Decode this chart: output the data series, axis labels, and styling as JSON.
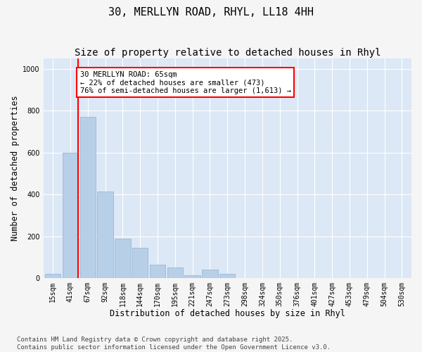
{
  "title_line1": "30, MERLLYN ROAD, RHYL, LL18 4HH",
  "title_line2": "Size of property relative to detached houses in Rhyl",
  "xlabel": "Distribution of detached houses by size in Rhyl",
  "ylabel": "Number of detached properties",
  "categories": [
    "15sqm",
    "41sqm",
    "67sqm",
    "92sqm",
    "118sqm",
    "144sqm",
    "170sqm",
    "195sqm",
    "221sqm",
    "247sqm",
    "273sqm",
    "298sqm",
    "324sqm",
    "350sqm",
    "376sqm",
    "401sqm",
    "427sqm",
    "453sqm",
    "479sqm",
    "504sqm",
    "530sqm"
  ],
  "values": [
    20,
    600,
    770,
    415,
    190,
    145,
    65,
    50,
    15,
    40,
    22,
    0,
    0,
    0,
    0,
    0,
    0,
    0,
    0,
    0,
    0
  ],
  "bar_color": "#b8cfe8",
  "bar_edge_color": "#9ab8d8",
  "vline_color": "red",
  "annotation_text": "30 MERLLYN ROAD: 65sqm\n← 22% of detached houses are smaller (473)\n76% of semi-detached houses are larger (1,613) →",
  "annotation_box_color": "white",
  "annotation_box_edge": "red",
  "ylim": [
    0,
    1050
  ],
  "yticks": [
    0,
    200,
    400,
    600,
    800,
    1000
  ],
  "plot_bg_color": "#dce8f5",
  "fig_bg_color": "#f5f5f5",
  "footer_line1": "Contains HM Land Registry data © Crown copyright and database right 2025.",
  "footer_line2": "Contains public sector information licensed under the Open Government Licence v3.0.",
  "title_fontsize": 11,
  "subtitle_fontsize": 10,
  "tick_fontsize": 7,
  "xlabel_fontsize": 8.5,
  "ylabel_fontsize": 8.5,
  "annotation_fontsize": 7.5,
  "footer_fontsize": 6.5
}
